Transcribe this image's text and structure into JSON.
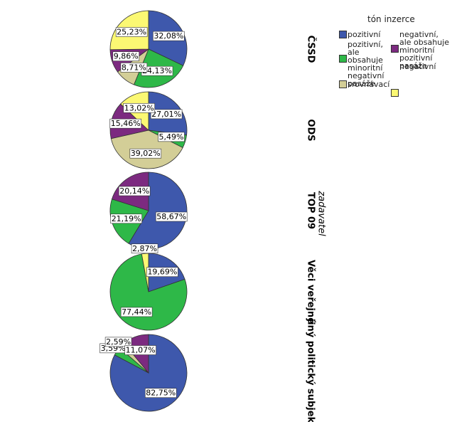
{
  "chart_data": {
    "type": "pie",
    "legend_title": "tón inzerce",
    "panel_title": "zadavatel",
    "categories": [
      "pozitivní",
      "pozitivní, ale obsahuje minoritní negativní pasáže",
      "srovnávací",
      "negativní, ale obsahuje minoritní pozitivní pasáže",
      "negativní"
    ],
    "colors": [
      "#3e58ac",
      "#2eb848",
      "#d3ce97",
      "#7c2a80",
      "#fbf873"
    ],
    "series": [
      {
        "name": "ČSSD",
        "values": [
          32.08,
          24.13,
          8.71,
          9.86,
          25.23
        ],
        "value_labels": [
          "32,08%",
          "24,13%",
          "8,71%",
          "9,86%",
          "25,23%"
        ]
      },
      {
        "name": "ODS",
        "values": [
          27.01,
          5.49,
          39.02,
          15.46,
          13.02
        ],
        "value_labels": [
          "27,01%",
          "5,49%",
          "39,02%",
          "15,46%",
          "13,02%"
        ]
      },
      {
        "name": "TOP 09",
        "values": [
          58.67,
          21.19,
          null,
          20.14,
          null
        ],
        "value_labels": [
          "58,67%",
          "21,19%",
          null,
          "20,14%",
          null
        ]
      },
      {
        "name": "Věci veřejné",
        "values": [
          19.69,
          77.44,
          null,
          null,
          2.87
        ],
        "value_labels": [
          "19,69%",
          "77,44%",
          null,
          null,
          "2,87%"
        ]
      },
      {
        "name": "jiný politický subjekt",
        "values": [
          82.75,
          3.59,
          2.59,
          11.07,
          null
        ],
        "value_labels": [
          "82,75%",
          "3,59%",
          "2,59%",
          "11,07%",
          null
        ]
      }
    ]
  }
}
